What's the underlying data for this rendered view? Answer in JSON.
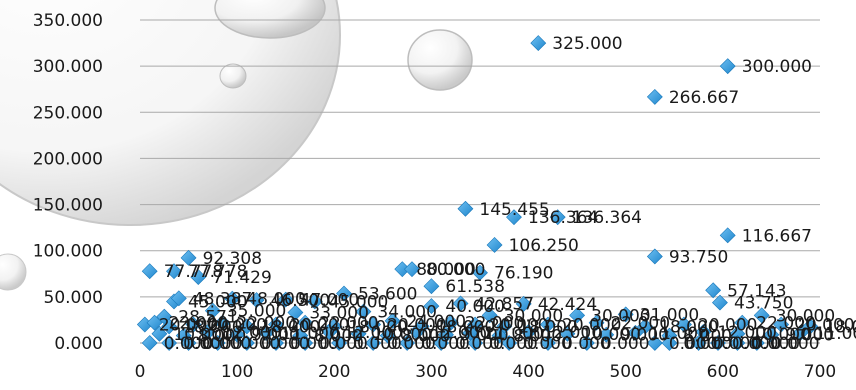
{
  "chart_data": {
    "type": "scatter",
    "title": "",
    "xlabel": "",
    "ylabel": "",
    "xlim": [
      0,
      700
    ],
    "ylim": [
      0,
      350
    ],
    "x_ticks": [
      "0",
      "100",
      "200",
      "300",
      "400",
      "500",
      "600",
      "700"
    ],
    "y_ticks": [
      "0.000",
      "50.000",
      "100.000",
      "150.000",
      "200.000",
      "250.000",
      "300.000",
      "350.000"
    ],
    "grid": "horizontal",
    "legend": "none",
    "marker_color": "#2e9bdc",
    "marker_shape": "diamond",
    "points": [
      {
        "x": 410,
        "y": 325.0,
        "label": "325.000"
      },
      {
        "x": 605,
        "y": 300.0,
        "label": "300.000"
      },
      {
        "x": 530,
        "y": 266.667,
        "label": "266.667"
      },
      {
        "x": 335,
        "y": 145.455,
        "label": "145.455"
      },
      {
        "x": 385,
        "y": 136.364,
        "label": "136.364"
      },
      {
        "x": 430,
        "y": 136.364,
        "label": "136.364"
      },
      {
        "x": 605,
        "y": 116.667,
        "label": "116.667"
      },
      {
        "x": 365,
        "y": 106.25,
        "label": "106.250"
      },
      {
        "x": 530,
        "y": 93.75,
        "label": "93.750"
      },
      {
        "x": 50,
        "y": 92.308,
        "label": "92.308"
      },
      {
        "x": 10,
        "y": 77.778,
        "label": "77.778"
      },
      {
        "x": 35,
        "y": 77.778,
        "label": "77.778"
      },
      {
        "x": 270,
        "y": 80.0,
        "label": "80.000"
      },
      {
        "x": 280,
        "y": 80.0,
        "label": "80.000"
      },
      {
        "x": 350,
        "y": 76.19,
        "label": "76.190"
      },
      {
        "x": 60,
        "y": 71.429,
        "label": "71.429"
      },
      {
        "x": 300,
        "y": 61.538,
        "label": "61.538"
      },
      {
        "x": 590,
        "y": 57.143,
        "label": "57.143"
      },
      {
        "x": 210,
        "y": 53.6,
        "label": "53.600"
      },
      {
        "x": 597,
        "y": 43.75,
        "label": "43.750"
      },
      {
        "x": 395,
        "y": 42.424,
        "label": "42.424"
      },
      {
        "x": 330,
        "y": 42.857,
        "label": "42.857"
      },
      {
        "x": 35,
        "y": 45.0,
        "label": "45.000"
      },
      {
        "x": 40,
        "y": 48.387,
        "label": "48.387"
      },
      {
        "x": 95,
        "y": 48.0,
        "label": "48.000"
      },
      {
        "x": 120,
        "y": 46.5,
        "label": "46.500"
      },
      {
        "x": 150,
        "y": 47.0,
        "label": "47.000"
      },
      {
        "x": 180,
        "y": 45.0,
        "label": "45.000"
      },
      {
        "x": 25,
        "y": 28.571,
        "label": "28.571"
      },
      {
        "x": 75,
        "y": 35.0,
        "label": "35.000"
      },
      {
        "x": 160,
        "y": 33.0,
        "label": "33.000"
      },
      {
        "x": 230,
        "y": 34.0,
        "label": "34.000"
      },
      {
        "x": 300,
        "y": 40.0,
        "label": "40.000"
      },
      {
        "x": 360,
        "y": 30.0,
        "label": "30.000"
      },
      {
        "x": 450,
        "y": 30.0,
        "label": "30.000"
      },
      {
        "x": 500,
        "y": 31.0,
        "label": "31.000"
      },
      {
        "x": 640,
        "y": 30.0,
        "label": "30.000"
      },
      {
        "x": 5,
        "y": 20.0,
        "label": "20.000"
      },
      {
        "x": 15,
        "y": 22.0,
        "label": "22.000"
      },
      {
        "x": 30,
        "y": 18.0,
        "label": "18.000"
      },
      {
        "x": 55,
        "y": 20.0,
        "label": "20.000"
      },
      {
        "x": 85,
        "y": 22.0,
        "label": "22.000"
      },
      {
        "x": 110,
        "y": 18.0,
        "label": "18.000"
      },
      {
        "x": 140,
        "y": 20.0,
        "label": "20.000"
      },
      {
        "x": 170,
        "y": 22.0,
        "label": "22.000"
      },
      {
        "x": 200,
        "y": 18.0,
        "label": "18.000"
      },
      {
        "x": 240,
        "y": 20.0,
        "label": "20.000"
      },
      {
        "x": 260,
        "y": 24.0,
        "label": "24.000"
      },
      {
        "x": 290,
        "y": 18.0,
        "label": "18.000"
      },
      {
        "x": 320,
        "y": 22.0,
        "label": "22.000"
      },
      {
        "x": 345,
        "y": 20.0,
        "label": "20.000"
      },
      {
        "x": 375,
        "y": 18.0,
        "label": "18.000"
      },
      {
        "x": 420,
        "y": 20.0,
        "label": "20.000"
      },
      {
        "x": 470,
        "y": 22.0,
        "label": "22.000"
      },
      {
        "x": 520,
        "y": 18.0,
        "label": "18.000"
      },
      {
        "x": 560,
        "y": 20.0,
        "label": "20.000"
      },
      {
        "x": 620,
        "y": 22.0,
        "label": "22.000"
      },
      {
        "x": 660,
        "y": 20.0,
        "label": "20.000"
      },
      {
        "x": 690,
        "y": 18.0,
        "label": "18.000"
      },
      {
        "x": 20,
        "y": 10.0,
        "label": "10.000"
      },
      {
        "x": 45,
        "y": 8.0,
        "label": "8.000"
      },
      {
        "x": 70,
        "y": 12.0,
        "label": "12.000"
      },
      {
        "x": 100,
        "y": 9.0,
        "label": "9.000"
      },
      {
        "x": 130,
        "y": 11.0,
        "label": "11.000"
      },
      {
        "x": 165,
        "y": 8.0,
        "label": "8.000"
      },
      {
        "x": 195,
        "y": 12.0,
        "label": "12.000"
      },
      {
        "x": 225,
        "y": 10.0,
        "label": "10.000"
      },
      {
        "x": 255,
        "y": 8.0,
        "label": "8.000"
      },
      {
        "x": 285,
        "y": 12.0,
        "label": "12.000"
      },
      {
        "x": 315,
        "y": 9.0,
        "label": "9.000"
      },
      {
        "x": 340,
        "y": 11.0,
        "label": "11.000"
      },
      {
        "x": 370,
        "y": 8.0,
        "label": "8.000"
      },
      {
        "x": 400,
        "y": 12.0,
        "label": "12.000"
      },
      {
        "x": 440,
        "y": 10.0,
        "label": "10.000"
      },
      {
        "x": 480,
        "y": 9.0,
        "label": "9.000"
      },
      {
        "x": 510,
        "y": 11.0,
        "label": "11.000"
      },
      {
        "x": 545,
        "y": 8.0,
        "label": "8.000"
      },
      {
        "x": 580,
        "y": 12.0,
        "label": "12.000"
      },
      {
        "x": 615,
        "y": 10.0,
        "label": "10.000"
      },
      {
        "x": 650,
        "y": 9.0,
        "label": "9.000"
      },
      {
        "x": 680,
        "y": 11.0,
        "label": "11.000"
      },
      {
        "x": 10,
        "y": 0.0,
        "label": "0.000"
      },
      {
        "x": 30,
        "y": 0.0,
        "label": "0.000"
      },
      {
        "x": 50,
        "y": 0.0,
        "label": "0.000"
      },
      {
        "x": 80,
        "y": 0.0,
        "label": "0.000"
      },
      {
        "x": 110,
        "y": 0.0,
        "label": "0.000"
      },
      {
        "x": 140,
        "y": 0.0,
        "label": "0.000"
      },
      {
        "x": 170,
        "y": 0.0,
        "label": "0.000"
      },
      {
        "x": 205,
        "y": 0.0,
        "label": "0.000"
      },
      {
        "x": 240,
        "y": 0.0,
        "label": "0.000"
      },
      {
        "x": 275,
        "y": 0.0,
        "label": "0.000"
      },
      {
        "x": 310,
        "y": 0.0,
        "label": "0.000"
      },
      {
        "x": 345,
        "y": 0.0,
        "label": "0.000"
      },
      {
        "x": 380,
        "y": 0.0,
        "label": "0.000"
      },
      {
        "x": 420,
        "y": 0.0,
        "label": "0.000"
      },
      {
        "x": 460,
        "y": 0.0,
        "label": "0.000"
      },
      {
        "x": 530,
        "y": 0.0,
        "label": "0.000"
      },
      {
        "x": 545,
        "y": 0.0,
        "label": "0.000"
      },
      {
        "x": 575,
        "y": 0.0,
        "label": "0.000"
      },
      {
        "x": 595,
        "y": 0.0,
        "label": "0.000"
      },
      {
        "x": 615,
        "y": 0.0,
        "label": "0.000"
      },
      {
        "x": 635,
        "y": 0.0,
        "label": "0.000"
      }
    ]
  }
}
